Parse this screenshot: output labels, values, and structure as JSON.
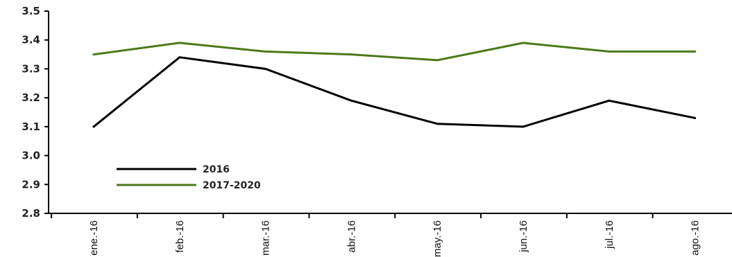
{
  "chart_data": {
    "type": "line",
    "categories": [
      "ene.-16",
      "feb.-16",
      "mar.-16",
      "abr.-16",
      "may.-16",
      "jun.-16",
      "jul.-16",
      "ago.-16"
    ],
    "series": [
      {
        "name": "2016",
        "color": "#000000",
        "values": [
          3.1,
          3.34,
          3.3,
          3.19,
          3.11,
          3.1,
          3.19,
          3.13
        ]
      },
      {
        "name": "2017-2020",
        "color": "#4a7a1a",
        "values": [
          3.35,
          3.39,
          3.36,
          3.35,
          3.33,
          3.39,
          3.36,
          3.36
        ]
      }
    ],
    "ylim": [
      2.8,
      3.5
    ],
    "yticks": [
      "2.8",
      "2.9",
      "3.0",
      "3.1",
      "3.2",
      "3.3",
      "3.4",
      "3.5"
    ],
    "grid": false,
    "legend_placement": "bottom-left"
  }
}
